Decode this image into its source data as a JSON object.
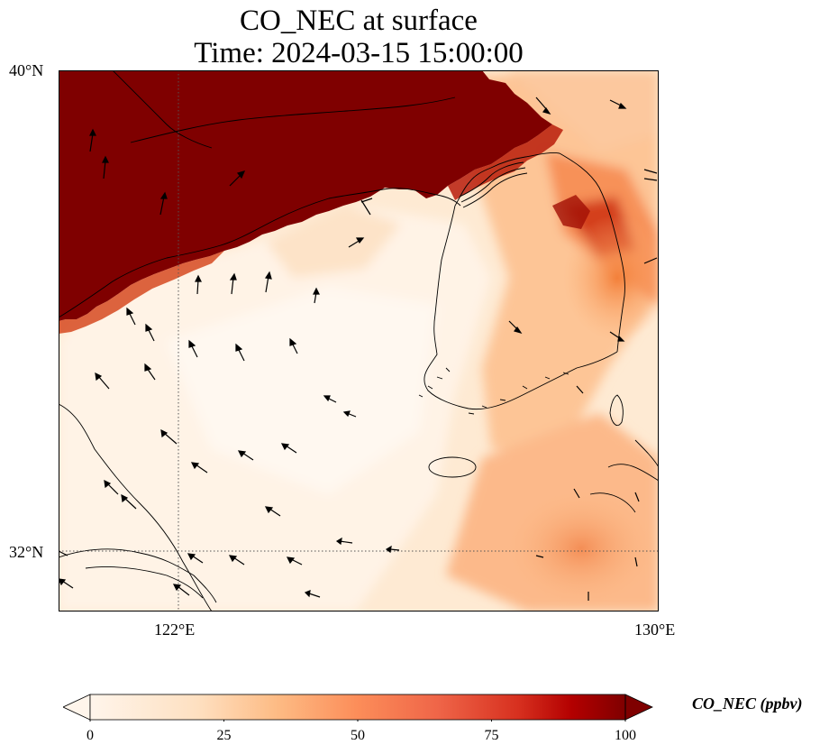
{
  "title": {
    "line1": "CO_NEC at surface",
    "line2": "Time: 2024-03-15 15:00:00"
  },
  "axes": {
    "lat_ticks": [
      "40°N",
      "32°N"
    ],
    "lon_ticks": [
      "122°E",
      "130°E"
    ],
    "lat_range": [
      31,
      40
    ],
    "lon_range": [
      120,
      130
    ],
    "gridlines": "dotted at 122°E and 32°N"
  },
  "colorbar": {
    "label": "CO_NEC (ppbv)",
    "ticks": [
      "0",
      "25",
      "50",
      "75",
      "100"
    ],
    "min": 0,
    "max": 100,
    "colormap": [
      "#fff5eb",
      "#fdd9b4",
      "#fda762",
      "#f3701b",
      "#c54102",
      "#7f0000"
    ],
    "extend": "both"
  },
  "colors": {
    "high": "#7f0000",
    "low": "#fff5eb"
  }
}
